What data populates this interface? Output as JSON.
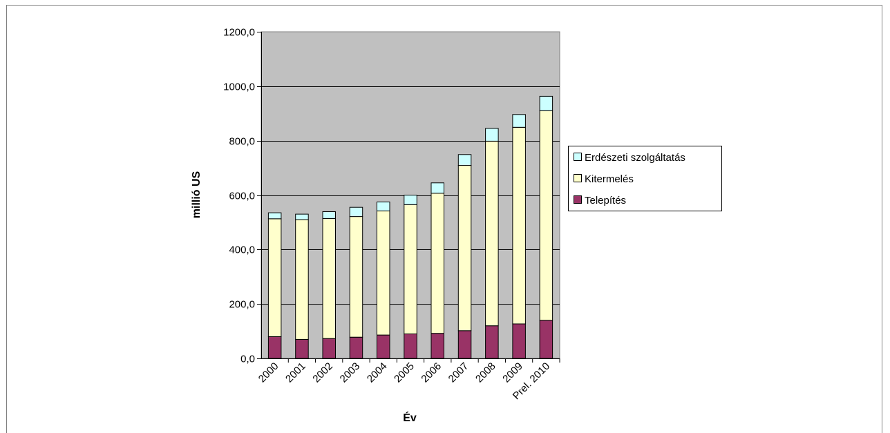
{
  "chart_data": {
    "type": "bar",
    "stacked": true,
    "categories": [
      "2000",
      "2001",
      "2002",
      "2003",
      "2004",
      "2005",
      "2006",
      "2007",
      "2008",
      "2009",
      "Prel. 2010"
    ],
    "series": [
      {
        "name": "Telepítés",
        "values": [
          80,
          70,
          73,
          78,
          86,
          90,
          92,
          102,
          120,
          127,
          140
        ],
        "color": "#993366"
      },
      {
        "name": "Kitermelés",
        "values": [
          433,
          440,
          441,
          443,
          456,
          475,
          515,
          607,
          678,
          722,
          770
        ],
        "color": "#FFFFCC"
      },
      {
        "name": "Erdészeti szolgáltatás",
        "values": [
          22,
          20,
          25,
          34,
          33,
          35,
          38,
          40,
          47,
          47,
          53
        ],
        "color": "#CCFFFF"
      }
    ],
    "ylabel": "millió US",
    "xlabel": "Év",
    "ylim": [
      0,
      1200
    ],
    "ytick_step": 200,
    "ytick_labels": [
      "0,0",
      "200,0",
      "400,0",
      "600,0",
      "800,0",
      "1000,0",
      "1200,0"
    ],
    "grid": true,
    "plot_background": "#C0C0C0",
    "legend_position": "right",
    "legend_order": [
      "Erdészeti szolgáltatás",
      "Kitermelés",
      "Telepítés"
    ]
  }
}
